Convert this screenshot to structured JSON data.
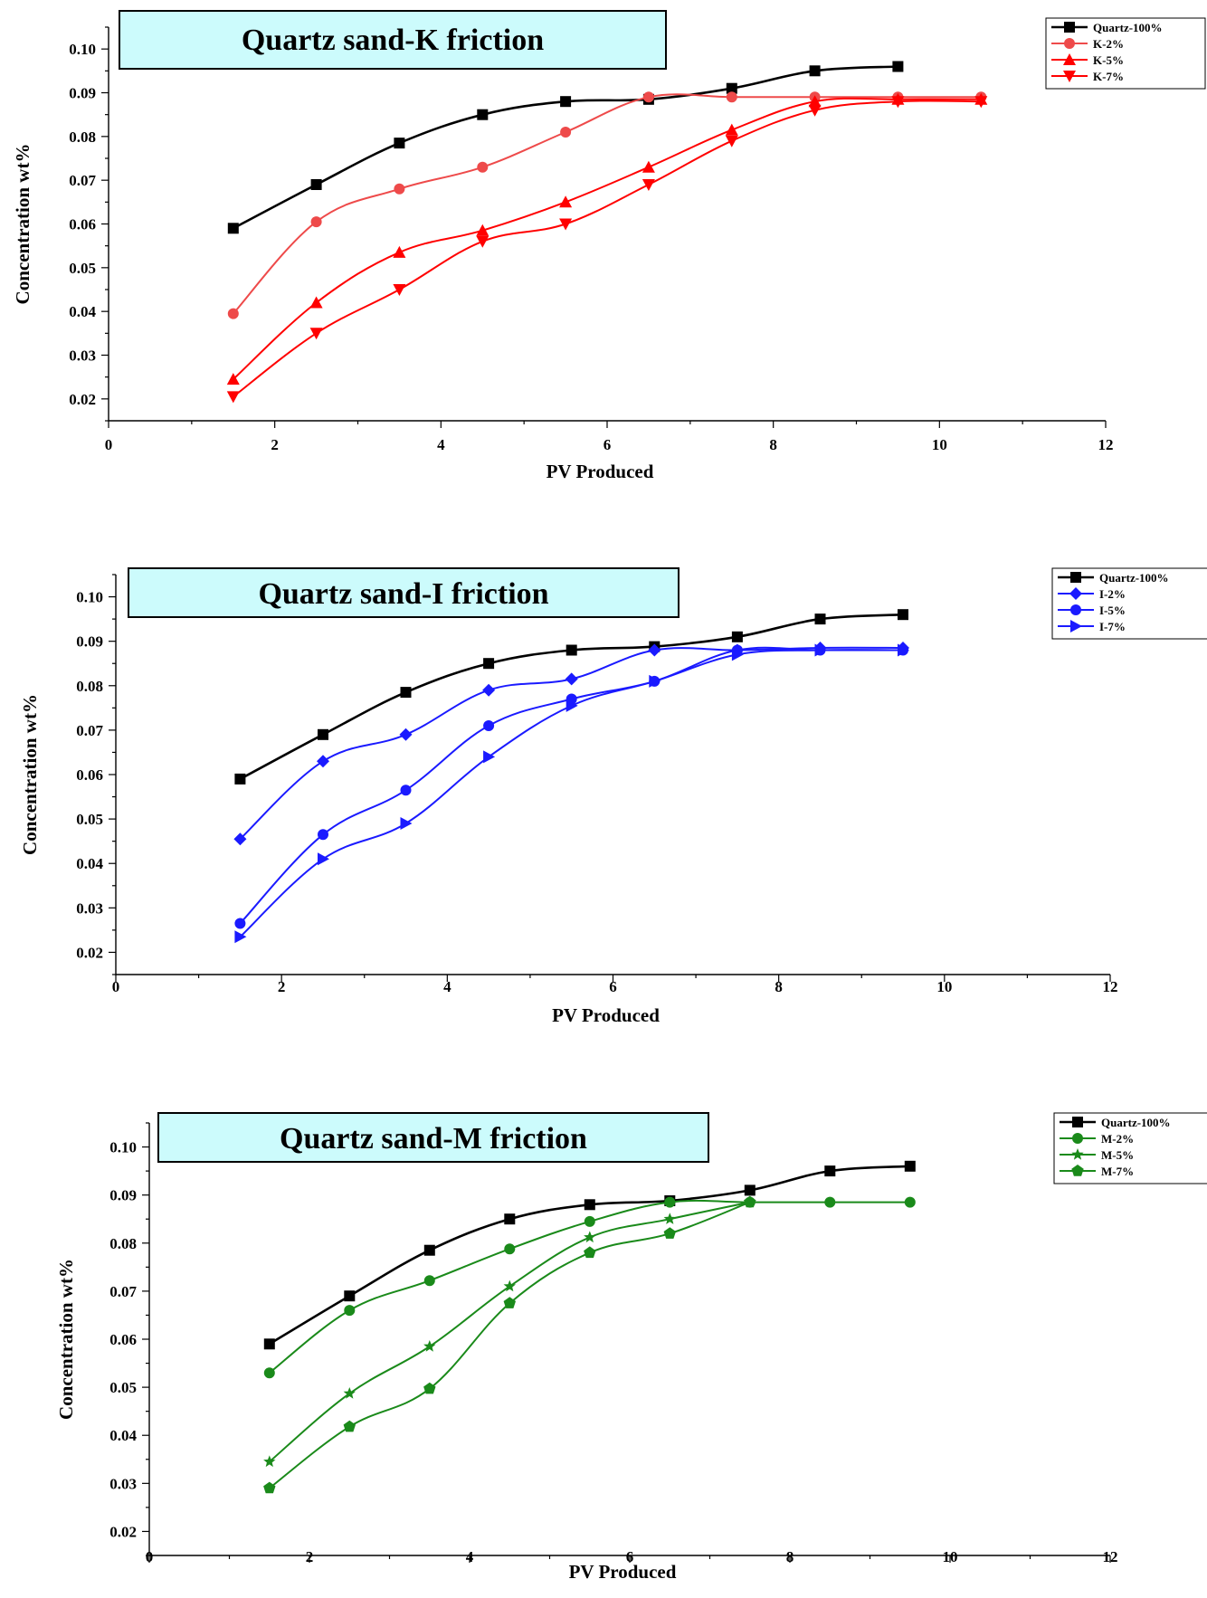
{
  "chart_data": [
    {
      "type": "line",
      "title": "Quartz sand-K friction",
      "xlabel": "PV Produced",
      "ylabel": "Concentration wt%",
      "xlim": [
        0,
        12
      ],
      "ylim": [
        0.015,
        0.105
      ],
      "xticks": [
        "0",
        "2",
        "4",
        "6",
        "8",
        "10",
        "12"
      ],
      "yticks": [
        "0.02",
        "0.03",
        "0.04",
        "0.05",
        "0.06",
        "0.07",
        "0.08",
        "0.09",
        "0.10"
      ],
      "legend_position": "top-right",
      "grid": false,
      "series": [
        {
          "name": "Quartz-100%",
          "color": "#000000",
          "marker": "square",
          "x": [
            1.5,
            2.5,
            3.5,
            4.5,
            5.5,
            6.5,
            7.5,
            8.5,
            9.5
          ],
          "y": [
            0.059,
            0.069,
            0.0785,
            0.085,
            0.088,
            0.0885,
            0.091,
            0.095,
            0.096
          ]
        },
        {
          "name": "K-2%",
          "color": "#ee4a4a",
          "marker": "circle",
          "x": [
            1.5,
            2.5,
            3.5,
            4.5,
            5.5,
            6.5,
            7.5,
            8.5,
            9.5,
            10.5
          ],
          "y": [
            0.0395,
            0.0605,
            0.068,
            0.073,
            0.081,
            0.089,
            0.089,
            0.089,
            0.089,
            0.089
          ]
        },
        {
          "name": "K-5%",
          "color": "#ff0000",
          "marker": "triangle-up",
          "x": [
            1.5,
            2.5,
            3.5,
            4.5,
            5.5,
            6.5,
            7.5,
            8.5,
            9.5,
            10.5
          ],
          "y": [
            0.0245,
            0.042,
            0.0535,
            0.0585,
            0.065,
            0.073,
            0.0815,
            0.088,
            0.0885,
            0.0885
          ]
        },
        {
          "name": "K-7%",
          "color": "#ff0000",
          "marker": "triangle-down",
          "x": [
            1.5,
            2.5,
            3.5,
            4.5,
            5.5,
            6.5,
            7.5,
            8.5,
            9.5,
            10.5
          ],
          "y": [
            0.0205,
            0.035,
            0.045,
            0.056,
            0.06,
            0.069,
            0.079,
            0.086,
            0.088,
            0.088
          ]
        }
      ]
    },
    {
      "type": "line",
      "title": "Quartz sand-I friction",
      "xlabel": "PV Produced",
      "ylabel": "Concentration wt%",
      "xlim": [
        0,
        12
      ],
      "ylim": [
        0.015,
        0.105
      ],
      "xticks": [
        "0",
        "2",
        "4",
        "6",
        "8",
        "10",
        "12"
      ],
      "yticks": [
        "0.02",
        "0.03",
        "0.04",
        "0.05",
        "0.06",
        "0.07",
        "0.08",
        "0.09",
        "0.10"
      ],
      "legend_position": "top-right",
      "grid": false,
      "series": [
        {
          "name": "Quartz-100%",
          "color": "#000000",
          "marker": "square",
          "x": [
            1.5,
            2.5,
            3.5,
            4.5,
            5.5,
            6.5,
            7.5,
            8.5,
            9.5
          ],
          "y": [
            0.059,
            0.069,
            0.0785,
            0.085,
            0.088,
            0.0888,
            0.091,
            0.095,
            0.096
          ]
        },
        {
          "name": "I-2%",
          "color": "#1a1aff",
          "marker": "diamond",
          "x": [
            1.5,
            2.5,
            3.5,
            4.5,
            5.5,
            6.5,
            7.5,
            8.5,
            9.5
          ],
          "y": [
            0.0455,
            0.063,
            0.069,
            0.079,
            0.0815,
            0.088,
            0.088,
            0.0885,
            0.0885
          ]
        },
        {
          "name": "I-5%",
          "color": "#1a1aff",
          "marker": "circle",
          "x": [
            1.5,
            2.5,
            3.5,
            4.5,
            5.5,
            6.5,
            7.5,
            8.5,
            9.5
          ],
          "y": [
            0.0265,
            0.0465,
            0.0565,
            0.071,
            0.077,
            0.081,
            0.088,
            0.088,
            0.088
          ]
        },
        {
          "name": "I-7%",
          "color": "#1a1aff",
          "marker": "triangle-right",
          "x": [
            1.5,
            2.5,
            3.5,
            4.5,
            5.5,
            6.5,
            7.5,
            8.5,
            9.5
          ],
          "y": [
            0.0235,
            0.041,
            0.049,
            0.064,
            0.0755,
            0.081,
            0.087,
            0.088,
            0.088
          ]
        }
      ]
    },
    {
      "type": "line",
      "title": "Quartz sand-M friction",
      "xlabel": "PV Produced",
      "ylabel": "Concentration wt%",
      "xlim": [
        0,
        12
      ],
      "ylim": [
        0.015,
        0.105
      ],
      "xticks": [
        "0",
        "2",
        "4",
        "6",
        "8",
        "10",
        "12"
      ],
      "yticks": [
        "0.02",
        "0.03",
        "0.04",
        "0.05",
        "0.06",
        "0.07",
        "0.08",
        "0.09",
        "0.10"
      ],
      "legend_position": "top-right",
      "grid": false,
      "series": [
        {
          "name": "Quartz-100%",
          "color": "#000000",
          "marker": "square",
          "x": [
            1.5,
            2.5,
            3.5,
            4.5,
            5.5,
            6.5,
            7.5,
            8.5,
            9.5
          ],
          "y": [
            0.059,
            0.069,
            0.0785,
            0.085,
            0.088,
            0.0888,
            0.091,
            0.095,
            0.096
          ]
        },
        {
          "name": "M-2%",
          "color": "#1a8a1a",
          "marker": "circle",
          "x": [
            1.5,
            2.5,
            3.5,
            4.5,
            5.5,
            6.5,
            7.5,
            8.5,
            9.5
          ],
          "y": [
            0.053,
            0.066,
            0.0722,
            0.0788,
            0.0845,
            0.0885,
            0.0885,
            0.0885,
            0.0885
          ]
        },
        {
          "name": "M-5%",
          "color": "#1a8a1a",
          "marker": "star",
          "x": [
            1.5,
            2.5,
            3.5,
            4.5,
            5.5,
            6.5,
            7.5
          ],
          "y": [
            0.0345,
            0.0487,
            0.0585,
            0.071,
            0.0812,
            0.085,
            0.0885
          ]
        },
        {
          "name": "M-7%",
          "color": "#1a8a1a",
          "marker": "pentagon",
          "x": [
            1.5,
            2.5,
            3.5,
            4.5,
            5.5,
            6.5,
            7.5
          ],
          "y": [
            0.029,
            0.0418,
            0.0497,
            0.0675,
            0.078,
            0.082,
            0.0885
          ]
        }
      ]
    }
  ]
}
